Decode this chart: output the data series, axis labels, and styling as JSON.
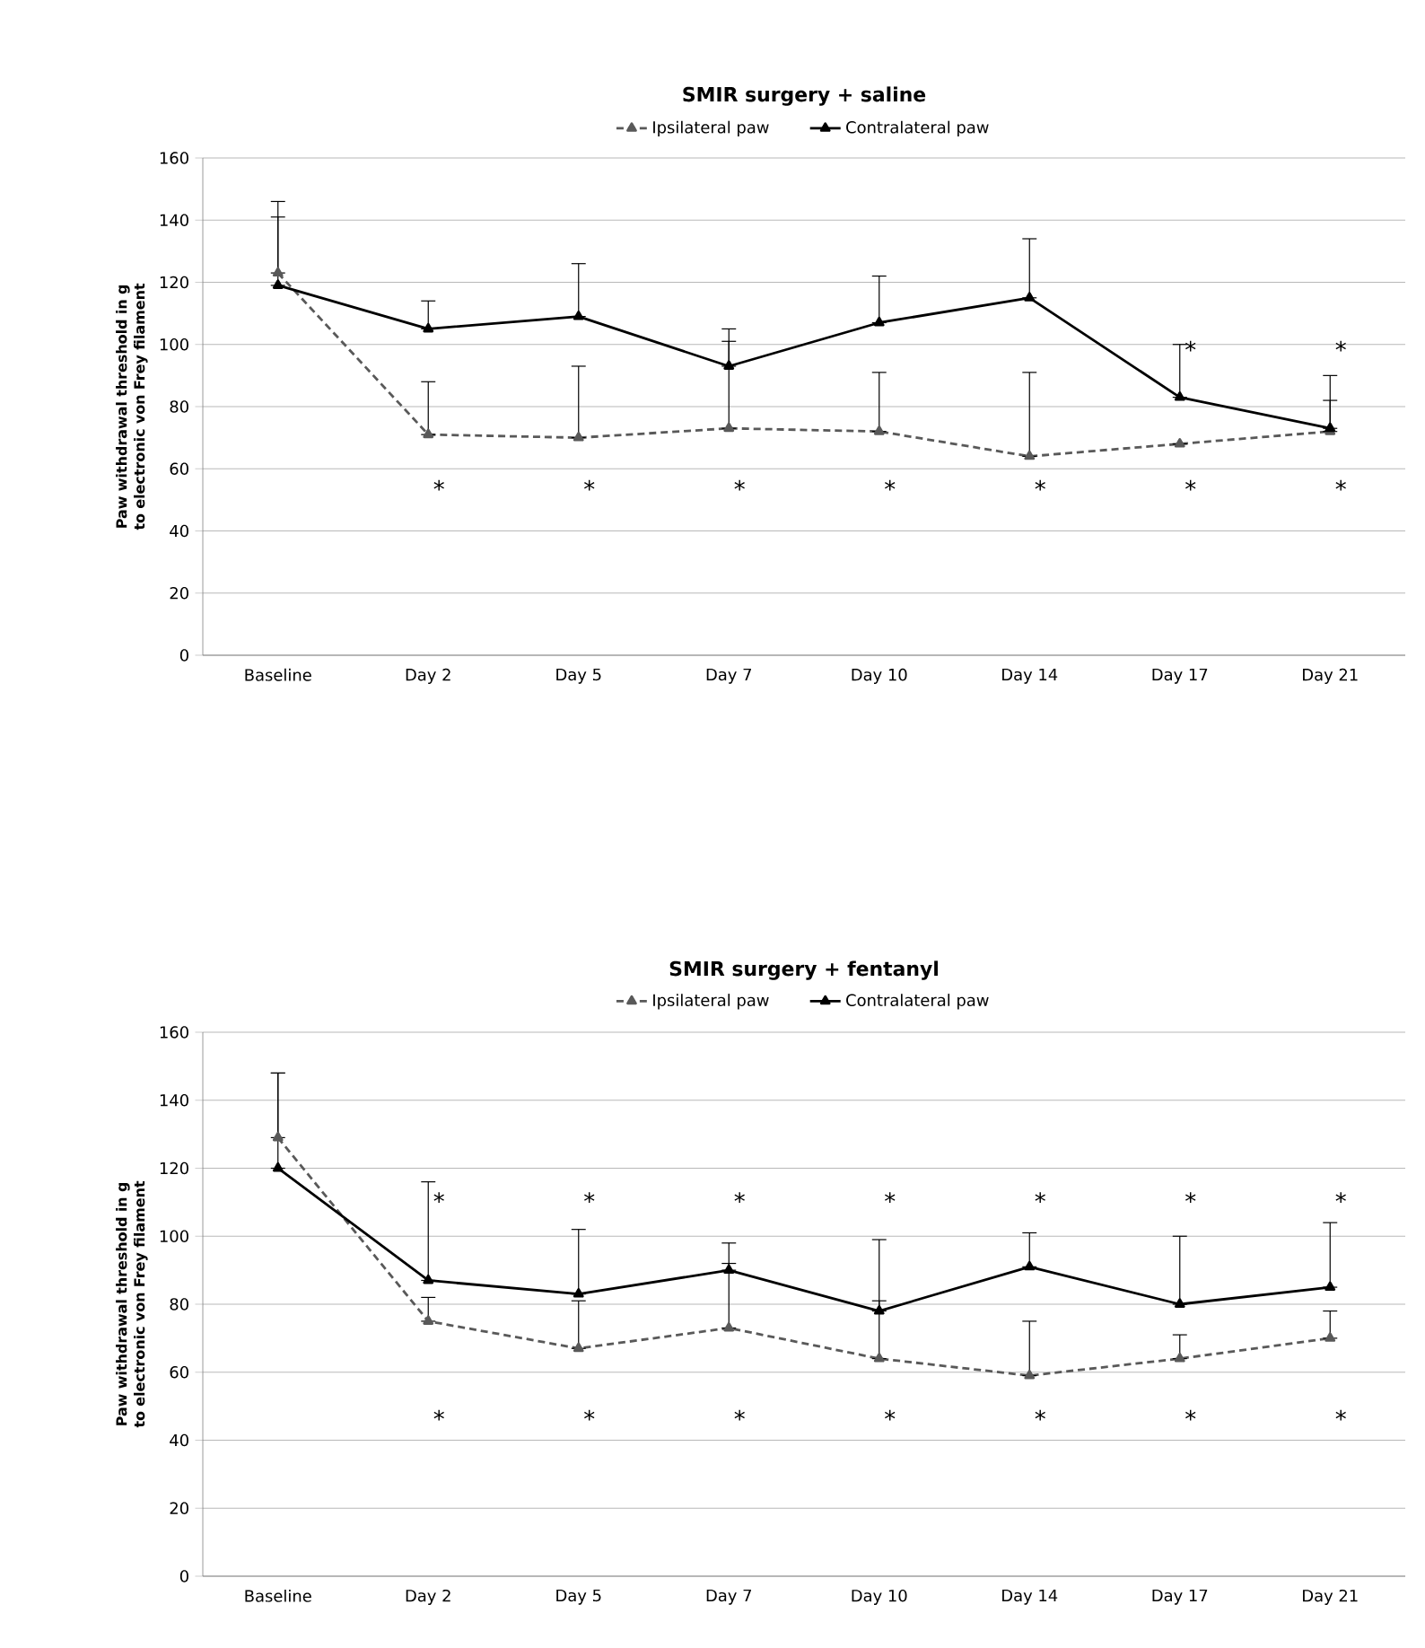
{
  "chart_data": [
    {
      "type": "line",
      "title": "SMIR surgery + saline",
      "ylabel": "Paw withdrawal threshold in g to electronic von Frey filament",
      "categories": [
        "Baseline",
        "Day 2",
        "Day 5",
        "Day 7",
        "Day 10",
        "Day 14",
        "Day 17",
        "Day 21"
      ],
      "series": [
        {
          "name": "Ipsilateral paw",
          "color": "#595959",
          "line_style": "dashed",
          "values": [
            123,
            71,
            70,
            73,
            72,
            64,
            68,
            72
          ],
          "errors": [
            [
              123,
              141
            ],
            [
              71,
              88
            ],
            [
              70,
              93
            ],
            [
              73,
              101
            ],
            [
              72,
              91
            ],
            [
              64,
              91
            ],
            null,
            [
              72,
              82
            ]
          ]
        },
        {
          "name": "Contralateral paw",
          "color": "#000000",
          "line_style": "solid",
          "values": [
            119,
            105,
            109,
            93,
            107,
            115,
            83,
            73
          ],
          "errors": [
            [
              119,
              146
            ],
            [
              105,
              114
            ],
            [
              109,
              126
            ],
            [
              93,
              105
            ],
            [
              107,
              122
            ],
            [
              115,
              134
            ],
            [
              83,
              100
            ],
            [
              73,
              90
            ]
          ]
        }
      ],
      "ylim": [
        0,
        160
      ],
      "yticks": [
        0,
        20,
        40,
        60,
        80,
        100,
        120,
        140,
        160
      ],
      "grid": "y",
      "legend": "top",
      "marker": "triangle",
      "annotations": [
        "*",
        "*",
        "*",
        "*",
        "*",
        "*",
        "*",
        "*",
        "*"
      ]
    },
    {
      "type": "line",
      "title": "SMIR surgery + fentanyl",
      "ylabel": "Paw withdrawal threshold in g to electronic von Frey filament",
      "categories": [
        "Baseline",
        "Day 2",
        "Day 5",
        "Day 7",
        "Day 10",
        "Day 14",
        "Day 17",
        "Day 21"
      ],
      "series": [
        {
          "name": "Ipsilateral paw",
          "color": "#595959",
          "line_style": "dashed",
          "values": [
            129,
            75,
            67,
            73,
            64,
            59,
            64,
            70
          ],
          "errors": [
            [
              129,
              148
            ],
            [
              75,
              82
            ],
            [
              67,
              81
            ],
            [
              73,
              92
            ],
            [
              64,
              81
            ],
            [
              59,
              75
            ],
            [
              64,
              71
            ],
            [
              70,
              78
            ]
          ]
        },
        {
          "name": "Contralateral paw",
          "color": "#000000",
          "line_style": "solid",
          "values": [
            120,
            87,
            83,
            90,
            78,
            91,
            80,
            85
          ],
          "errors": [
            [
              120,
              148
            ],
            [
              87,
              116
            ],
            [
              83,
              102
            ],
            [
              90,
              98
            ],
            [
              78,
              99
            ],
            [
              91,
              101
            ],
            [
              80,
              100
            ],
            [
              85,
              104
            ]
          ]
        }
      ],
      "ylim": [
        0,
        160
      ],
      "yticks": [
        0,
        20,
        40,
        60,
        80,
        100,
        120,
        140,
        160
      ],
      "grid": "y",
      "legend": "top",
      "marker": "triangle",
      "annotations": [
        "*",
        "*",
        "*",
        "*",
        "*",
        "*",
        "*",
        "*",
        "*",
        "*",
        "*",
        "*",
        "*",
        "*"
      ]
    }
  ]
}
